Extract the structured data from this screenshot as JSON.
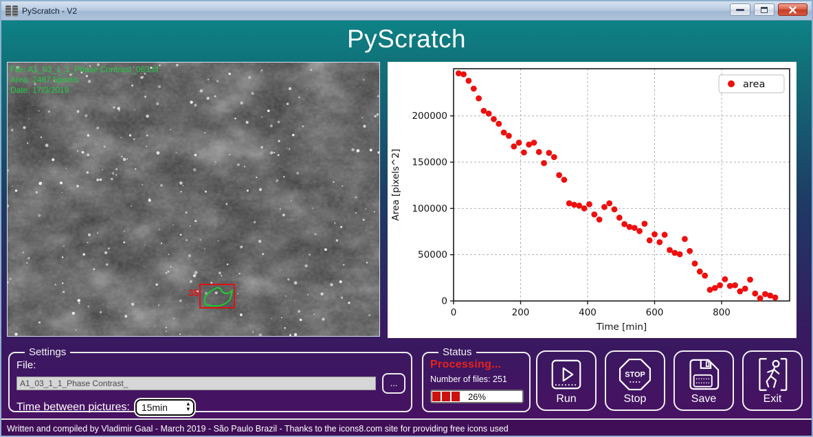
{
  "window": {
    "title": "PyScratch - V2"
  },
  "header": {
    "title": "PyScratch"
  },
  "viewer": {
    "overlay_lines": [
      "File: A1_03_1_1_Phase Contrast_063.tif",
      "Area: 2487.5pixels",
      "Date: 17/3/2019"
    ],
    "overlay_color": "#23cc44",
    "marker_label": "35",
    "marker_color": "#e01010",
    "contour_color": "#1ecb32"
  },
  "chart_data": {
    "type": "scatter",
    "title": "",
    "xlabel": "Time [min]",
    "ylabel": "Area [pixels^2]",
    "xlim": [
      0,
      1003
    ],
    "ylim": [
      0,
      251000
    ],
    "xticks": [
      0,
      200,
      400,
      600,
      800
    ],
    "yticks": [
      0,
      50000,
      100000,
      150000,
      200000
    ],
    "grid": true,
    "legend": {
      "label": "area",
      "position": "upper right"
    },
    "marker_color": "#ee0f0f",
    "series": [
      {
        "name": "area",
        "x": [
          15,
          30,
          45,
          60,
          75,
          90,
          105,
          120,
          135,
          150,
          165,
          180,
          195,
          210,
          225,
          240,
          255,
          270,
          285,
          300,
          315,
          330,
          345,
          360,
          375,
          390,
          405,
          420,
          435,
          450,
          465,
          480,
          495,
          510,
          525,
          540,
          555,
          570,
          585,
          600,
          615,
          630,
          645,
          660,
          675,
          690,
          705,
          720,
          735,
          750,
          765,
          780,
          795,
          810,
          825,
          840,
          855,
          870,
          885,
          900,
          915,
          930,
          945,
          960
        ],
        "y": [
          246000,
          245000,
          238000,
          229500,
          219000,
          205500,
          202500,
          196500,
          191500,
          182000,
          178500,
          167000,
          171000,
          160500,
          169000,
          171000,
          161000,
          149000,
          160000,
          155500,
          136000,
          131000,
          105500,
          104000,
          103000,
          100000,
          104500,
          93500,
          88000,
          101500,
          105500,
          99000,
          90000,
          83000,
          80000,
          79000,
          75500,
          83500,
          65500,
          72000,
          63500,
          71500,
          55000,
          52000,
          50500,
          67000,
          54000,
          40500,
          31800,
          27400,
          12000,
          14000,
          17000,
          23500,
          16300,
          17000,
          10400,
          13300,
          23000,
          8000,
          3000,
          7400,
          5900,
          3700
        ]
      }
    ]
  },
  "settings": {
    "title": "Settings",
    "file_label": "File:",
    "file_value": "A1_03_1_1_Phase Contrast_",
    "browse_label": "...",
    "interval_label": "Time between pictures:",
    "interval_value": "15min"
  },
  "status": {
    "title": "Status",
    "state": "Processing...",
    "files_label": "Number of files:",
    "files_count": "251",
    "progress_percent": "26%",
    "progress_segments": 3
  },
  "actions": [
    {
      "id": "run",
      "label": "Run"
    },
    {
      "id": "stop",
      "label": "Stop"
    },
    {
      "id": "save",
      "label": "Save"
    },
    {
      "id": "exit",
      "label": "Exit"
    }
  ],
  "footer": {
    "text": "Written and compiled by Vladimir Gaal - March 2019 - São Paulo Brazil - Thanks to the icons8.com site for providing free icons used"
  }
}
